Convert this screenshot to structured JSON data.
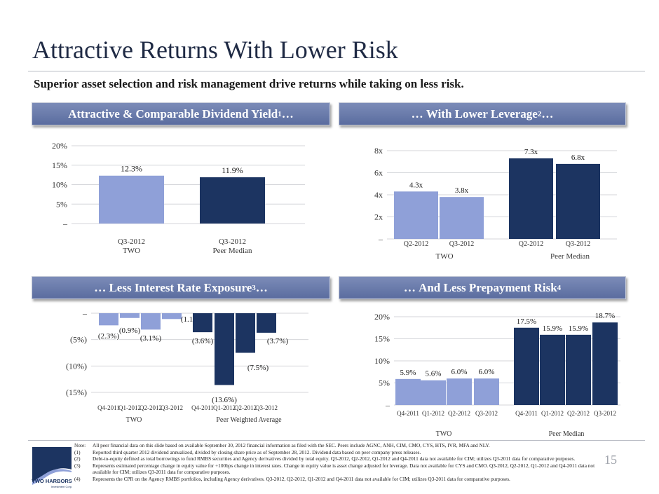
{
  "title": "Attractive Returns With Lower Risk",
  "subtitle": "Superior asset selection and risk management drive returns while taking on less risk.",
  "page_number": "15",
  "colors": {
    "light": "#8fa0d8",
    "dark": "#1c3461",
    "banner": "#6b7cae"
  },
  "banners": {
    "dividend": {
      "text": "Attractive & Comparable Dividend Yield",
      "sup": "1",
      "suffix": "…"
    },
    "leverage": {
      "prefix": "… ",
      "text": "With Lower Leverage",
      "sup": "2",
      "suffix": "…"
    },
    "rate": {
      "prefix": "… ",
      "text": "Less Interest Rate Exposure",
      "sup": "3",
      "suffix": "…"
    },
    "prepay": {
      "prefix": "… ",
      "text": "And Less Prepayment Risk",
      "sup": "4",
      "suffix": ""
    }
  },
  "chart_data": [
    {
      "id": "dividend",
      "type": "bar",
      "yticks": [
        "20%",
        "15%",
        "10%",
        "5%",
        "–"
      ],
      "ylim": [
        0,
        20
      ],
      "categories": [
        "Q3-2012",
        "Q3-2012"
      ],
      "groups": [
        "TWO",
        "Peer Median"
      ],
      "values": [
        12.3,
        11.9
      ],
      "labels": [
        "12.3%",
        "11.9%"
      ]
    },
    {
      "id": "leverage",
      "type": "bar",
      "yticks": [
        "8x",
        "6x",
        "4x",
        "2x",
        "–"
      ],
      "ylim": [
        0,
        8
      ],
      "categories": [
        "Q2-2012",
        "Q3-2012",
        "Q2-2012",
        "Q3-2012"
      ],
      "groups": [
        "TWO",
        "Peer Median"
      ],
      "values": [
        4.3,
        3.8,
        7.3,
        6.8
      ],
      "labels": [
        "4.3x",
        "3.8x",
        "7.3x",
        "6.8x"
      ]
    },
    {
      "id": "rate",
      "type": "bar",
      "yticks": [
        "–",
        "(5%)",
        "(10%)",
        "(15%)"
      ],
      "ylim": [
        -15,
        0
      ],
      "categories": [
        "Q4-2011",
        "Q1-2012",
        "Q2-2012",
        "Q3-2012",
        "Q4-2011",
        "Q1-2012",
        "Q2-2012",
        "Q3-2012"
      ],
      "groups": [
        "TWO",
        "Peer Weighted Average"
      ],
      "values": [
        -2.3,
        -0.9,
        -3.1,
        -1.1,
        -3.6,
        -13.6,
        -7.5,
        -3.7
      ],
      "labels": [
        "(2.3%)",
        "(0.9%)",
        "(3.1%)",
        "(1.1%)",
        "(3.6%)",
        "(13.6%)",
        "(7.5%)",
        "(3.7%)"
      ]
    },
    {
      "id": "prepay",
      "type": "bar",
      "yticks": [
        "20%",
        "15%",
        "10%",
        "5%",
        "–"
      ],
      "ylim": [
        0,
        20
      ],
      "categories": [
        "Q4-2011",
        "Q1-2012",
        "Q2-2012",
        "Q3-2012",
        "Q4-2011",
        "Q1-2012",
        "Q2-2012",
        "Q3-2012"
      ],
      "groups": [
        "TWO",
        "Peer Median"
      ],
      "values": [
        5.9,
        5.6,
        6.0,
        6.0,
        17.5,
        15.9,
        15.9,
        18.7
      ],
      "labels": [
        "5.9%",
        "5.6%",
        "6.0%",
        "6.0%",
        "17.5%",
        "15.9%",
        "15.9%",
        "18.7%"
      ]
    }
  ],
  "notes": [
    {
      "key": "Note:",
      "text": "All peer financial data on this slide based on available September 30, 2012 financial information as filed with the SEC.  Peers include AGNC, ANH, CIM, CMO, CYS, HTS, IVR, MFA and NLY."
    },
    {
      "key": "(1)",
      "text": "Reported third quarter 2012 dividend annualized, divided by closing share price as of September 28, 2012. Dividend data based on peer company press releases."
    },
    {
      "key": "(2)",
      "text": "Debt-to-equity defined as total borrowings to fund RMBS securities and Agency derivatives divided by total equity. Q3-2012, Q2-2012, Q1-2012 and Q4-2011 data not available for CIM; utilizes Q3-2011 data for comparative purposes."
    },
    {
      "key": "(3)",
      "text": "Represents estimated percentage change in equity value for +100bps change in interest rates. Change in equity value is asset change adjusted for leverage.  Data not available for CYS and CMO.  Q3-2012, Q2-2012, Q1-2012 and Q4-2011 data not available for CIM; utilizes Q3-2011 data for comparative purposes."
    },
    {
      "key": "(4)",
      "text": "Represents the CPR on the Agency RMBS portfolios, including Agency derivatives. Q3-2012, Q2-2012, Q1-2012 and Q4-2011 data not available for CIM; utilizes Q3-2011 data for comparative purposes."
    }
  ],
  "logo": {
    "name": "TWO HARBORS",
    "tagline": "Investment Corp."
  }
}
